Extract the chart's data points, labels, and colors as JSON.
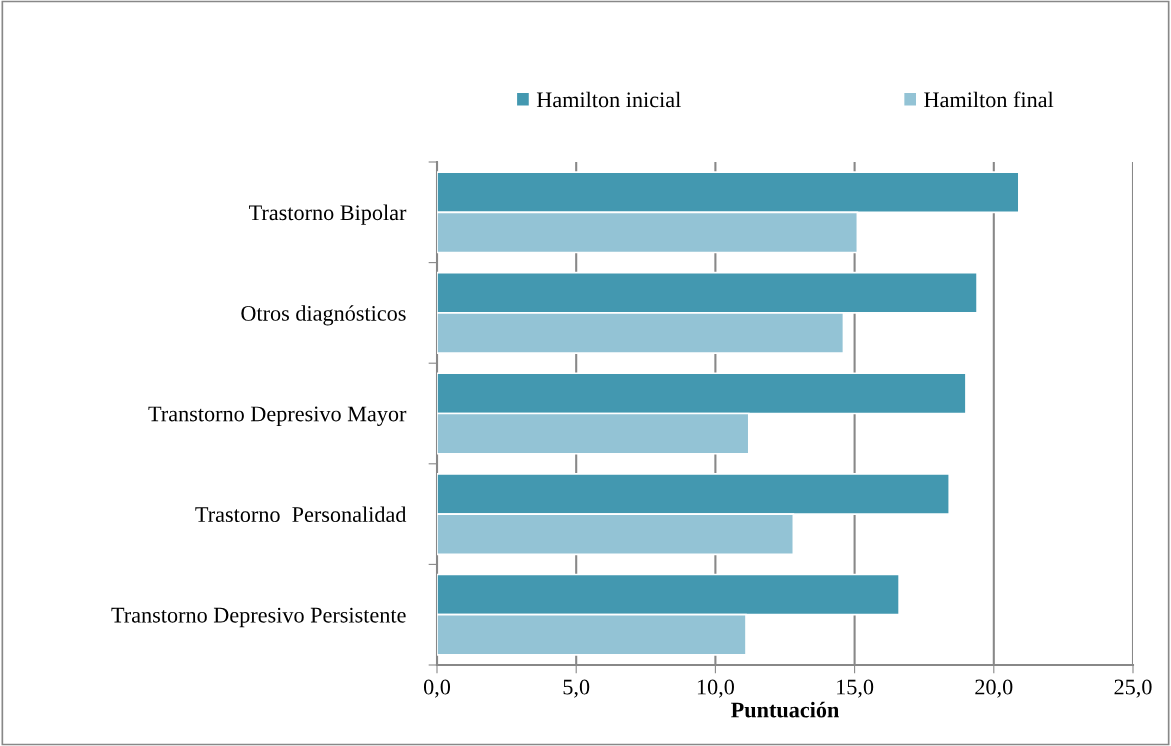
{
  "chart_data": {
    "type": "bar",
    "orientation": "horizontal",
    "xlabel": "Puntuación",
    "categories": [
      "Trastorno Bipolar",
      "Otros diagnósticos",
      "Transtorno Depresivo Mayor",
      "Trastorno  Personalidad",
      "Transtorno Depresivo Persistente"
    ],
    "series": [
      {
        "name": "Hamilton inicial",
        "color": "#4398b0",
        "values": [
          20.9,
          19.4,
          19.0,
          18.4,
          16.6
        ]
      },
      {
        "name": "Hamilton final",
        "color": "#93c3d5",
        "values": [
          15.1,
          14.6,
          11.2,
          12.8,
          11.1
        ]
      }
    ],
    "xlim": [
      0,
      25
    ],
    "xticks": [
      {
        "value": 0,
        "label": "0,0"
      },
      {
        "value": 5,
        "label": "5,0"
      },
      {
        "value": 10,
        "label": "10,0"
      },
      {
        "value": 15,
        "label": "15,0"
      },
      {
        "value": 20,
        "label": "20,0"
      },
      {
        "value": 25,
        "label": "25,0"
      }
    ],
    "grid": "x",
    "legend": "top"
  }
}
